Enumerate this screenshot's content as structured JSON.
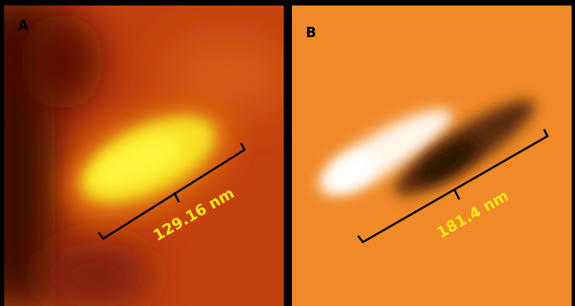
{
  "panels": [
    {
      "label": "A",
      "scale_label": "129.16 nm"
    },
    {
      "label": "B",
      "scale_label": "181.4 nm"
    }
  ]
}
